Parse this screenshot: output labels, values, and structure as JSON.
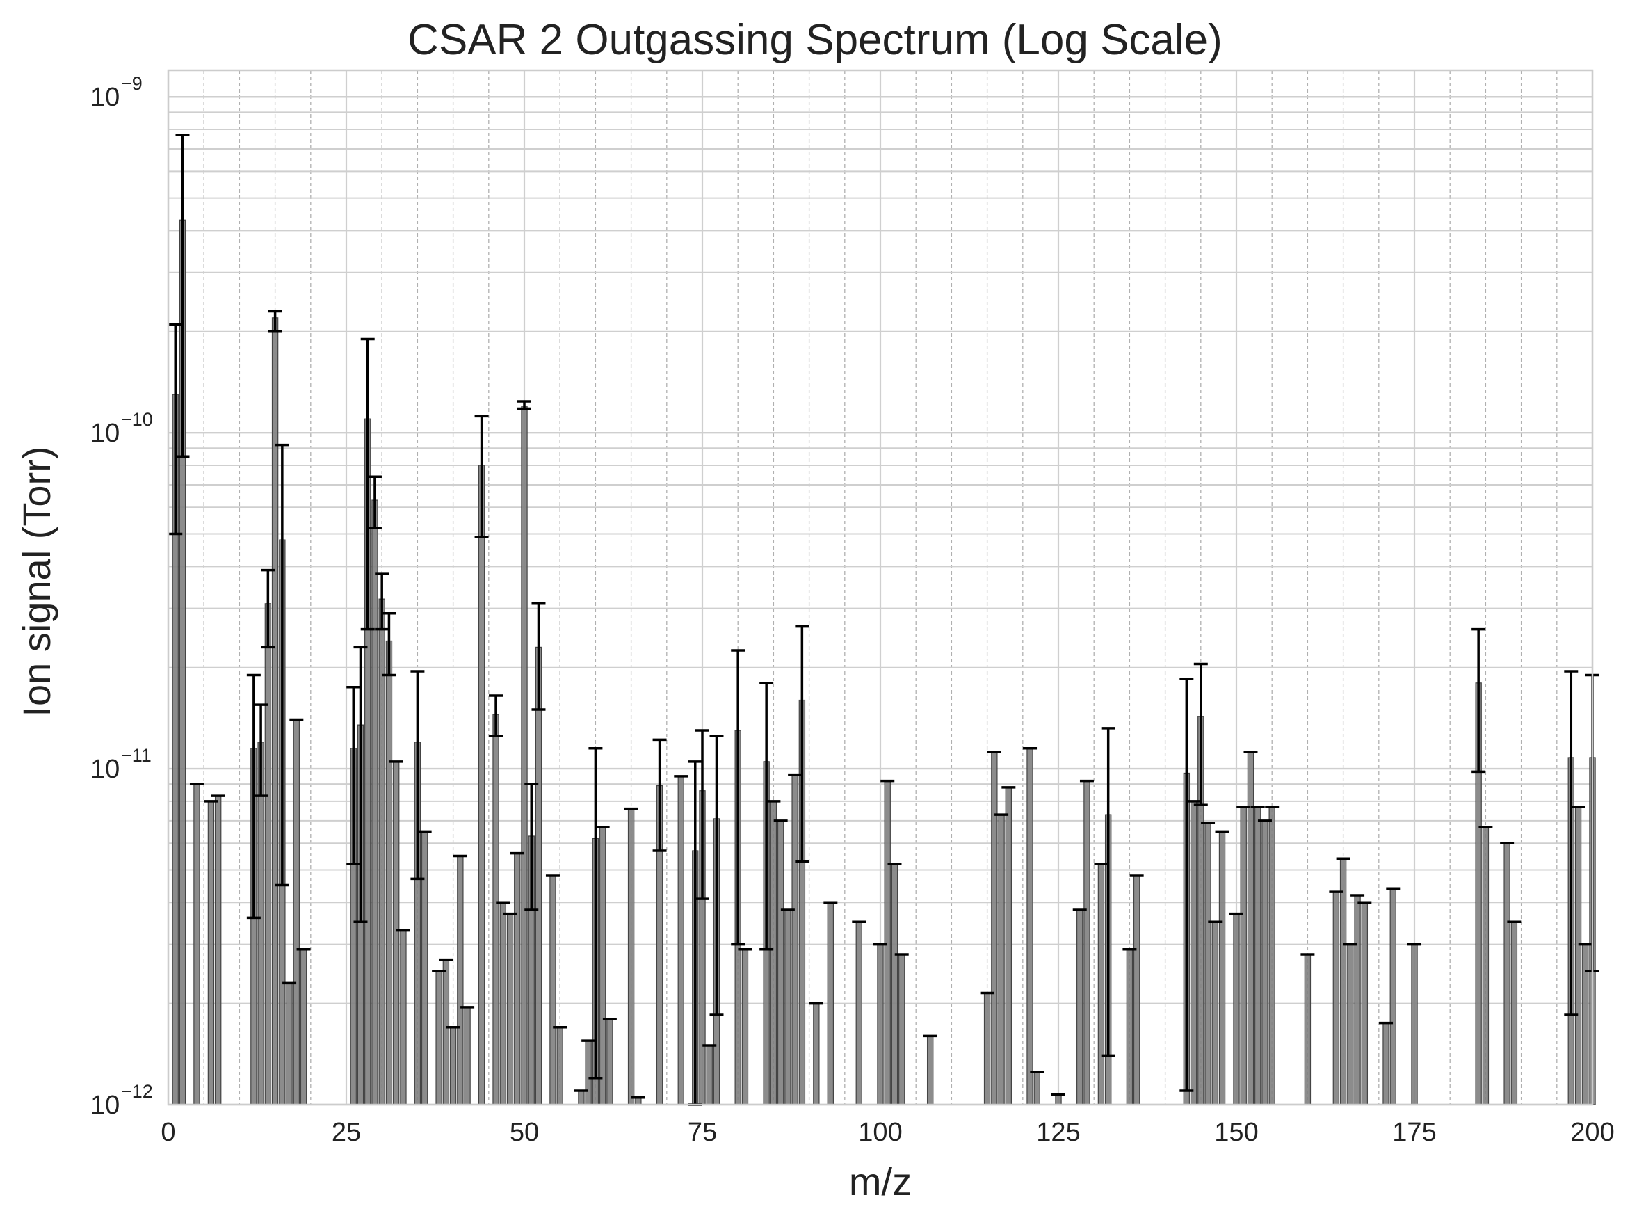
{
  "chart_data": {
    "type": "bar",
    "title": "CSAR 2 Outgassing Spectrum (Log Scale)",
    "xlabel": "m/z",
    "ylabel": "Ion signal (Torr)",
    "xlim": [
      0,
      200
    ],
    "ylim": [
      1e-12,
      1.2e-09
    ],
    "yscale": "log",
    "grid": true,
    "legend": "none",
    "xticks": [
      "0",
      "25",
      "50",
      "75",
      "100",
      "125",
      "150",
      "175",
      "200"
    ],
    "yticks": [
      {
        "base": "10",
        "exp": "−12",
        "value": 1e-12
      },
      {
        "base": "10",
        "exp": "−11",
        "value": 1e-11
      },
      {
        "base": "10",
        "exp": "−10",
        "value": 1e-10
      },
      {
        "base": "10",
        "exp": "−9",
        "value": 1e-09
      }
    ],
    "colors": {
      "bar": "#808080",
      "bar_edge": "#444444",
      "errorbar": "#000000",
      "grid": "#cfcfcf",
      "spine": "#cccccc"
    },
    "bars": [
      {
        "x": 1,
        "y": 1.3e-10,
        "lo": 5e-11,
        "hi": 2.1e-10
      },
      {
        "x": 2,
        "y": 4.3e-10,
        "lo": 8.5e-11,
        "hi": 7.7e-10
      },
      {
        "x": 4,
        "y": 9e-12
      },
      {
        "x": 6,
        "y": 8e-12
      },
      {
        "x": 7,
        "y": 8.3e-12
      },
      {
        "x": 12,
        "y": 1.15e-11,
        "lo": 3.6e-12,
        "hi": 1.9e-11
      },
      {
        "x": 13,
        "y": 1.2e-11,
        "lo": 8.3e-12,
        "hi": 1.55e-11
      },
      {
        "x": 14,
        "y": 3.1e-11,
        "lo": 2.3e-11,
        "hi": 3.9e-11
      },
      {
        "x": 15,
        "y": 2.2e-10,
        "lo": 2e-10,
        "hi": 2.3e-10
      },
      {
        "x": 16,
        "y": 4.8e-11,
        "lo": 4.5e-12,
        "hi": 9.2e-11
      },
      {
        "x": 17,
        "y": 2.3e-12
      },
      {
        "x": 18,
        "y": 1.4e-11
      },
      {
        "x": 19,
        "y": 2.9e-12
      },
      {
        "x": 26,
        "y": 1.15e-11,
        "lo": 5.2e-12,
        "hi": 1.75e-11
      },
      {
        "x": 27,
        "y": 1.35e-11,
        "lo": 3.5e-12,
        "hi": 2.3e-11
      },
      {
        "x": 28,
        "y": 1.1e-10,
        "lo": 2.6e-11,
        "hi": 1.9e-10
      },
      {
        "x": 29,
        "y": 6.3e-11,
        "lo": 5.2e-11,
        "hi": 7.4e-11
      },
      {
        "x": 30,
        "y": 3.2e-11,
        "lo": 2.6e-11,
        "hi": 3.8e-11
      },
      {
        "x": 31,
        "y": 2.4e-11,
        "lo": 1.9e-11,
        "hi": 2.9e-11
      },
      {
        "x": 32,
        "y": 1.05e-11
      },
      {
        "x": 33,
        "y": 3.3e-12
      },
      {
        "x": 35,
        "y": 1.2e-11,
        "lo": 4.7e-12,
        "hi": 1.95e-11
      },
      {
        "x": 36,
        "y": 6.5e-12
      },
      {
        "x": 38,
        "y": 2.5e-12
      },
      {
        "x": 39,
        "y": 2.7e-12
      },
      {
        "x": 40,
        "y": 1.7e-12
      },
      {
        "x": 41,
        "y": 5.5e-12
      },
      {
        "x": 42,
        "y": 1.95e-12
      },
      {
        "x": 44,
        "y": 8e-11,
        "lo": 4.9e-11,
        "hi": 1.12e-10
      },
      {
        "x": 46,
        "y": 1.45e-11,
        "lo": 1.25e-11,
        "hi": 1.65e-11
      },
      {
        "x": 47,
        "y": 4e-12
      },
      {
        "x": 48,
        "y": 3.7e-12
      },
      {
        "x": 49,
        "y": 5.6e-12
      },
      {
        "x": 50,
        "y": 1.2e-10,
        "lo": 1.18e-10,
        "hi": 1.24e-10
      },
      {
        "x": 51,
        "y": 6.3e-12,
        "lo": 3.8e-12,
        "hi": 9e-12
      },
      {
        "x": 52,
        "y": 2.3e-11,
        "lo": 1.5e-11,
        "hi": 3.1e-11
      },
      {
        "x": 54,
        "y": 4.8e-12
      },
      {
        "x": 55,
        "y": 1.7e-12
      },
      {
        "x": 58,
        "y": 1.1e-12
      },
      {
        "x": 59,
        "y": 1.55e-12
      },
      {
        "x": 60,
        "y": 6.2e-12,
        "lo": 1.2e-12,
        "hi": 1.15e-11
      },
      {
        "x": 61,
        "y": 6.7e-12
      },
      {
        "x": 62,
        "y": 1.8e-12
      },
      {
        "x": 65,
        "y": 7.6e-12
      },
      {
        "x": 66,
        "y": 1.05e-12
      },
      {
        "x": 69,
        "y": 8.9e-12,
        "lo": 5.7e-12,
        "hi": 1.22e-11
      },
      {
        "x": 72,
        "y": 9.5e-12
      },
      {
        "x": 74,
        "y": 5.7e-12,
        "lo": 9e-13,
        "hi": 1.05e-11
      },
      {
        "x": 75,
        "y": 8.6e-12,
        "lo": 4.1e-12,
        "hi": 1.3e-11
      },
      {
        "x": 76,
        "y": 1.5e-12
      },
      {
        "x": 77,
        "y": 7.1e-12,
        "lo": 1.85e-12,
        "hi": 1.25e-11
      },
      {
        "x": 80,
        "y": 1.3e-11,
        "lo": 3e-12,
        "hi": 2.25e-11
      },
      {
        "x": 81,
        "y": 2.9e-12
      },
      {
        "x": 84,
        "y": 1.05e-11,
        "lo": 2.9e-12,
        "hi": 1.8e-11
      },
      {
        "x": 85,
        "y": 8e-12
      },
      {
        "x": 86,
        "y": 7e-12
      },
      {
        "x": 87,
        "y": 3.8e-12
      },
      {
        "x": 88,
        "y": 9.6e-12
      },
      {
        "x": 89,
        "y": 1.6e-11,
        "lo": 5.3e-12,
        "hi": 2.65e-11
      },
      {
        "x": 91,
        "y": 2e-12
      },
      {
        "x": 93,
        "y": 4e-12
      },
      {
        "x": 97,
        "y": 3.5e-12
      },
      {
        "x": 100,
        "y": 3e-12
      },
      {
        "x": 101,
        "y": 9.2e-12
      },
      {
        "x": 102,
        "y": 5.2e-12
      },
      {
        "x": 103,
        "y": 2.8e-12
      },
      {
        "x": 107,
        "y": 1.6e-12
      },
      {
        "x": 115,
        "y": 2.15e-12
      },
      {
        "x": 116,
        "y": 1.12e-11
      },
      {
        "x": 117,
        "y": 7.3e-12
      },
      {
        "x": 118,
        "y": 8.8e-12
      },
      {
        "x": 121,
        "y": 1.15e-11
      },
      {
        "x": 122,
        "y": 1.25e-12
      },
      {
        "x": 125,
        "y": 1.07e-12
      },
      {
        "x": 128,
        "y": 3.8e-12
      },
      {
        "x": 129,
        "y": 9.2e-12
      },
      {
        "x": 131,
        "y": 5.2e-12
      },
      {
        "x": 132,
        "y": 7.3e-12,
        "lo": 1.4e-12,
        "hi": 1.32e-11
      },
      {
        "x": 135,
        "y": 2.9e-12
      },
      {
        "x": 136,
        "y": 4.8e-12
      },
      {
        "x": 143,
        "y": 9.7e-12,
        "lo": 1.1e-12,
        "hi": 1.85e-11
      },
      {
        "x": 144,
        "y": 8e-12
      },
      {
        "x": 145,
        "y": 1.43e-11,
        "lo": 7.8e-12,
        "hi": 2.05e-11
      },
      {
        "x": 146,
        "y": 6.9e-12
      },
      {
        "x": 147,
        "y": 3.5e-12
      },
      {
        "x": 148,
        "y": 6.5e-12
      },
      {
        "x": 150,
        "y": 3.7e-12
      },
      {
        "x": 151,
        "y": 7.7e-12
      },
      {
        "x": 152,
        "y": 1.12e-11
      },
      {
        "x": 153,
        "y": 7.7e-12
      },
      {
        "x": 154,
        "y": 7e-12
      },
      {
        "x": 155,
        "y": 7.7e-12
      },
      {
        "x": 160,
        "y": 2.8e-12
      },
      {
        "x": 164,
        "y": 4.3e-12
      },
      {
        "x": 165,
        "y": 5.4e-12
      },
      {
        "x": 166,
        "y": 3e-12
      },
      {
        "x": 167,
        "y": 4.2e-12
      },
      {
        "x": 168,
        "y": 4e-12
      },
      {
        "x": 171,
        "y": 1.75e-12
      },
      {
        "x": 172,
        "y": 4.4e-12
      },
      {
        "x": 175,
        "y": 3e-12
      },
      {
        "x": 184,
        "y": 1.8e-11,
        "lo": 9.8e-12,
        "hi": 2.6e-11
      },
      {
        "x": 185,
        "y": 6.7e-12
      },
      {
        "x": 188,
        "y": 6e-12
      },
      {
        "x": 189,
        "y": 3.5e-12
      },
      {
        "x": 197,
        "y": 1.08e-11,
        "lo": 1.85e-12,
        "hi": 1.95e-11
      },
      {
        "x": 198,
        "y": 7.7e-12
      },
      {
        "x": 199,
        "y": 3e-12
      },
      {
        "x": 200,
        "y": 1.08e-11,
        "lo": 2.5e-12,
        "hi": 1.9e-11
      }
    ]
  }
}
